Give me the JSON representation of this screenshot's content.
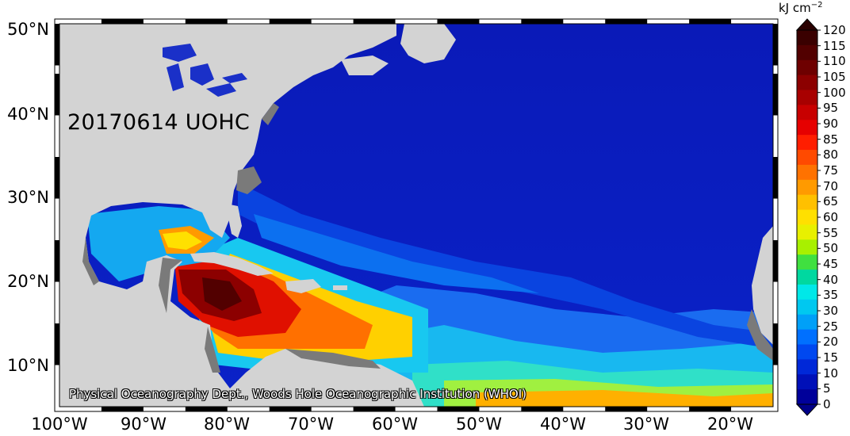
{
  "map": {
    "title": "20170614 UOHC",
    "credit": "Physical Oceanography Dept., Woods Hole Oceanographic Institution (WHOI)",
    "extent": {
      "lon_min": -100,
      "lon_max": -15,
      "lat_min": 5,
      "lat_max": 51
    },
    "lat_labels": [
      "50°N",
      "40°N",
      "30°N",
      "20°N",
      "10°N"
    ],
    "lon_labels": [
      "100°W",
      "90°W",
      "80°W",
      "70°W",
      "60°W",
      "50°W",
      "40°W",
      "30°W",
      "20°W"
    ],
    "land_color": "#d3d3d3",
    "coast_gray": "#7a7a7a"
  },
  "colorbar": {
    "units": "kJ cm",
    "units_exponent": "−2",
    "ticks": [
      "120",
      "115",
      "110",
      "105",
      "100",
      "95",
      "90",
      "85",
      "80",
      "75",
      "70",
      "65",
      "60",
      "55",
      "50",
      "45",
      "40",
      "35",
      "30",
      "25",
      "20",
      "15",
      "10",
      "5",
      "0"
    ],
    "colors": [
      "#3a0000",
      "#520000",
      "#6e0000",
      "#8c0000",
      "#a80000",
      "#c80000",
      "#e60000",
      "#ff1e00",
      "#ff4a00",
      "#ff7200",
      "#ff9a00",
      "#ffc000",
      "#ffe000",
      "#e8f000",
      "#a8f000",
      "#40e040",
      "#00d8a0",
      "#00e8e8",
      "#00c8f0",
      "#00a0f8",
      "#0070ff",
      "#0048f0",
      "#0028d8",
      "#0010b8",
      "#00009a"
    ]
  }
}
